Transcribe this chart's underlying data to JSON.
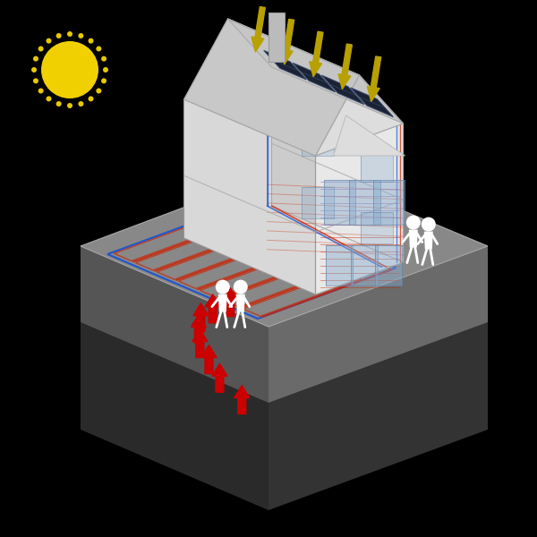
{
  "background_color": "#000000",
  "sun_color": "#f0d000",
  "sun_ray_color": "#e8c800",
  "solar_arrow_color": "#b8a000",
  "red_arrow_color": "#cc0000",
  "blue_pipe_color": "#2255cc",
  "red_pipe_color": "#cc2200",
  "purple_pipe_color": "#8833aa",
  "figure_color": "#ffffff",
  "ground_top_color": "#888888",
  "ground_left_color": "#555555",
  "ground_right_color": "#6a6a6a",
  "soil_color": "#3d3d3d",
  "soil_left_color": "#2a2a2a",
  "soil_right_color": "#333333",
  "house_front_color": "#e8e8e8",
  "house_right_color": "#cccccc",
  "house_left_color": "#d8d8d8",
  "roof_color": "#dddddd",
  "roof_side_color": "#c8c8c8",
  "panel_color": "#1a2233",
  "chimney_color": "#bbbbbb"
}
